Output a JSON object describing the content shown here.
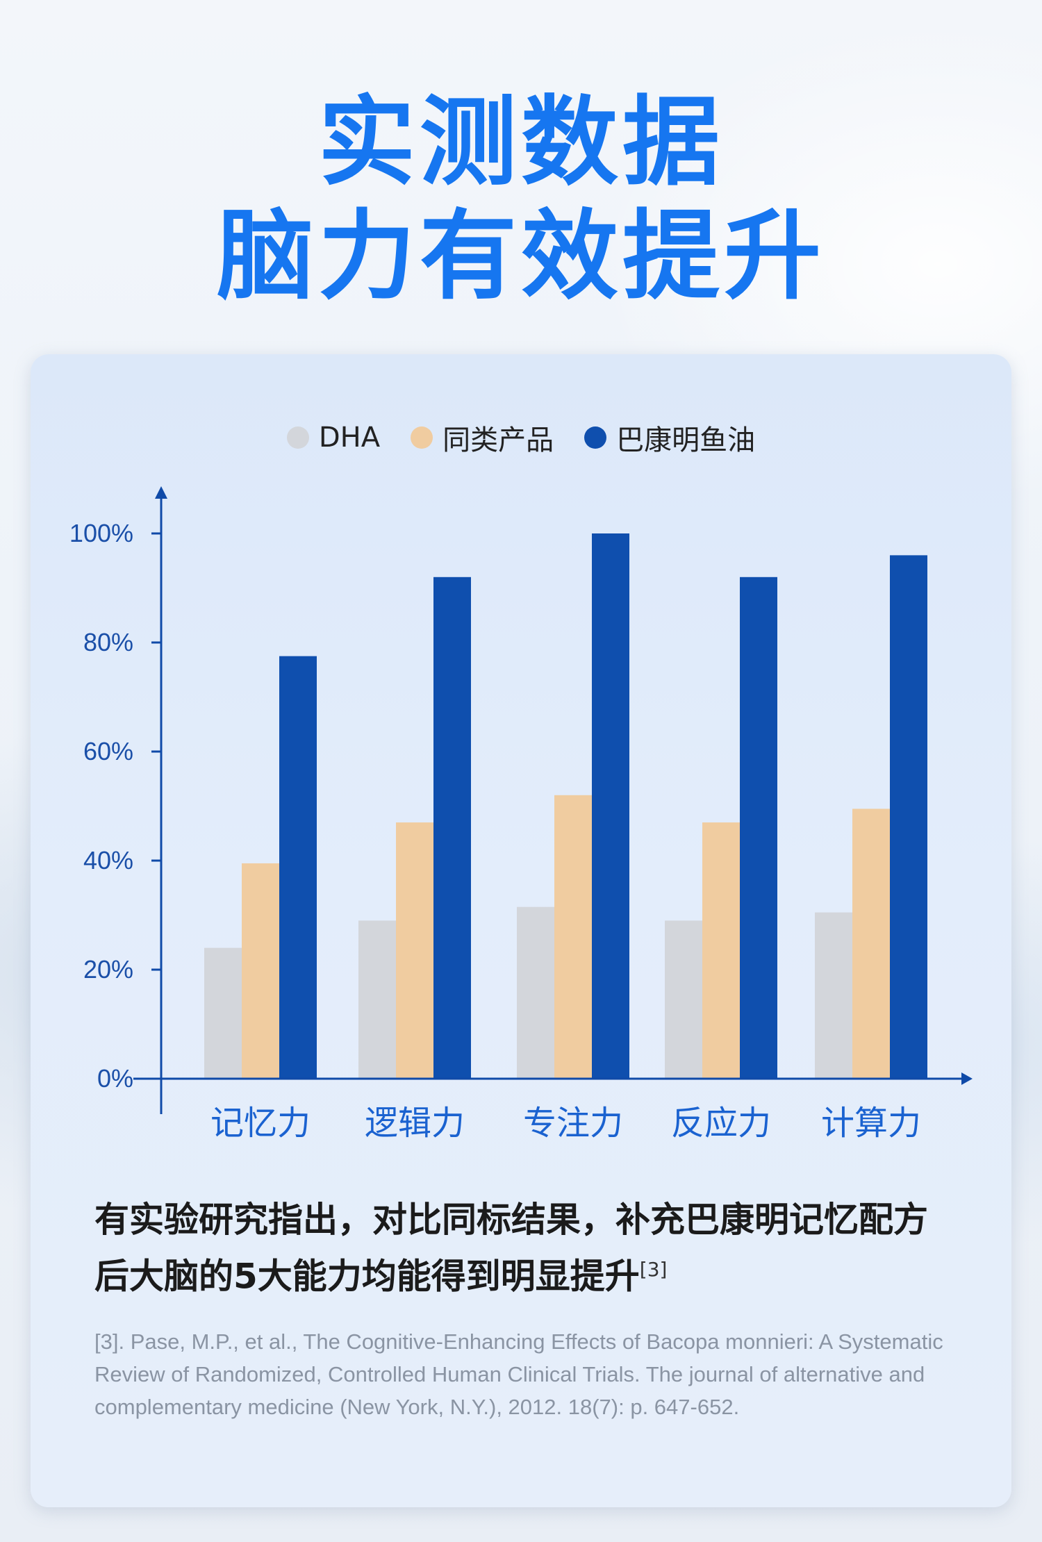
{
  "headline": {
    "line1": "实测数据",
    "line2": "脑力有效提升"
  },
  "colors": {
    "headline": "#1676f0",
    "dha": "#d3d6db",
    "similar": "#f0cca0",
    "bakang": "#0f4fae",
    "axis": "#0f4aa8",
    "category_label": "#1a62d0"
  },
  "chart_data": {
    "type": "bar",
    "categories": [
      "记忆力",
      "逻辑力",
      "专注力",
      "反应力",
      "计算力"
    ],
    "series": [
      {
        "name": "DHA",
        "values": [
          24,
          29,
          31.5,
          29,
          30.5
        ]
      },
      {
        "name": "同类产品",
        "values": [
          39.5,
          47,
          52,
          47,
          49.5
        ]
      },
      {
        "name": "巴康明鱼油",
        "values": [
          77.5,
          92,
          100,
          92,
          96
        ]
      }
    ],
    "yticks": [
      "0%",
      "20%",
      "40%",
      "60%",
      "80%",
      "100%"
    ],
    "ylim": [
      0,
      100
    ],
    "legend": "top-center"
  },
  "summary": {
    "text": "有实验研究指出，对比同标结果，补充巴康明记忆配方后大脑的5大能力均能得到明显提升",
    "citation": "[3]"
  },
  "reference": "[3]. Pase, M.P., et al., The Cognitive-Enhancing Effects of Bacopa monnieri: A Systematic Review of Randomized, Controlled Human Clinical Trials. The journal of alternative and complementary medicine (New York, N.Y.), 2012. 18(7): p. 647-652."
}
